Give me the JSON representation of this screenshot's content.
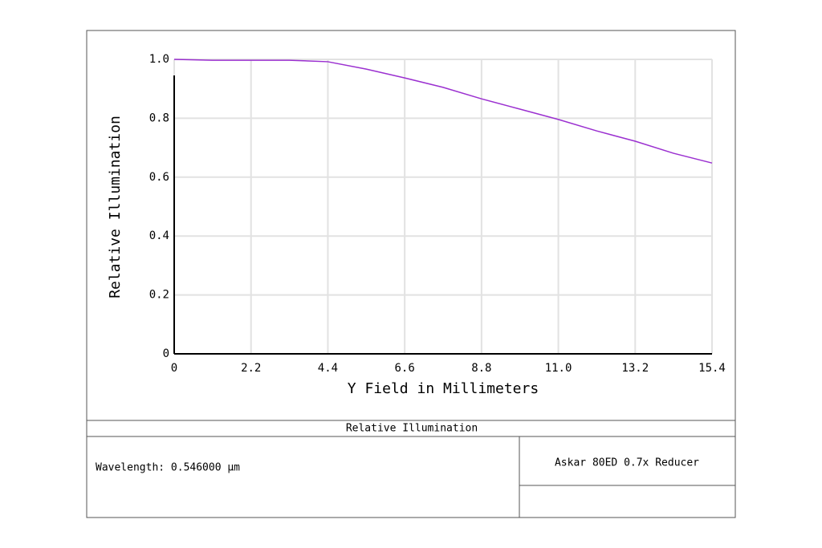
{
  "chart_data": {
    "type": "line",
    "xlabel": "Y Field in Millimeters",
    "ylabel": "Relative Illumination",
    "x": [
      0,
      1.1,
      2.2,
      3.3,
      4.4,
      5.5,
      6.6,
      7.7,
      8.8,
      9.9,
      11.0,
      12.1,
      13.2,
      14.3,
      15.4
    ],
    "series": [
      {
        "color": "#9b30d0",
        "values": [
          1.0,
          0.997,
          0.997,
          0.997,
          0.992,
          0.967,
          0.937,
          0.905,
          0.866,
          0.831,
          0.796,
          0.757,
          0.722,
          0.681,
          0.648
        ]
      }
    ],
    "xlim": [
      0,
      15.4
    ],
    "ylim": [
      0,
      1
    ],
    "xticks": [
      0,
      2.2,
      4.4,
      6.6,
      8.8,
      {
        "value": 11,
        "label": "11.0"
      },
      13.2,
      15.4
    ],
    "yticks": [
      0,
      0.2,
      0.4,
      0.6,
      0.8,
      {
        "value": 1,
        "label": "1.0"
      }
    ],
    "grid": true,
    "footer": {
      "title": "Relative Illumination",
      "wavelength": "Wavelength: 0.546000 µm",
      "lens": "Askar 80ED 0.7x Reducer"
    }
  }
}
